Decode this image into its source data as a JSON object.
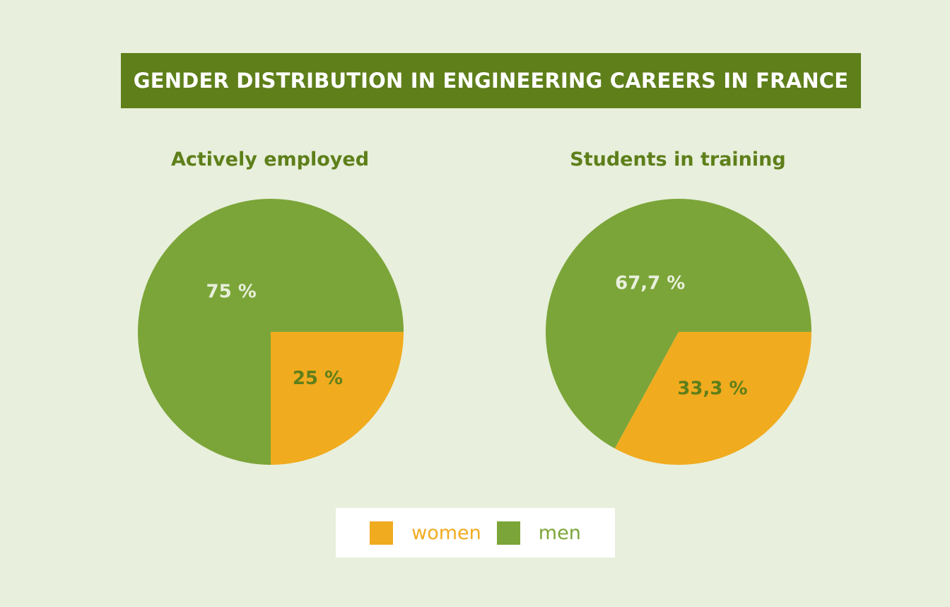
{
  "title": "GENDER DISTRIBUTION IN ENGINEERING CAREERS IN FRANCE",
  "colors": {
    "background": "#e8efdc",
    "banner": "#5e7f1a",
    "women": "#f1ab1f",
    "men": "#7ba538",
    "light_label": "#e8efdc",
    "dark_label": "#5e7f1a"
  },
  "legend": [
    {
      "name": "women",
      "color": "#f1ab1f"
    },
    {
      "name": "men",
      "color": "#7ba538"
    }
  ],
  "chart_data": [
    {
      "type": "pie",
      "title": "Actively employed",
      "slices": [
        {
          "name": "women",
          "value": 25,
          "label": "25 %"
        },
        {
          "name": "men",
          "value": 75,
          "label": "75 %"
        }
      ]
    },
    {
      "type": "pie",
      "title": "Students in training",
      "slices": [
        {
          "name": "women",
          "value": 33.3,
          "label": "33,3 %"
        },
        {
          "name": "men",
          "value": 67.7,
          "label": "67,7 %"
        }
      ]
    }
  ]
}
